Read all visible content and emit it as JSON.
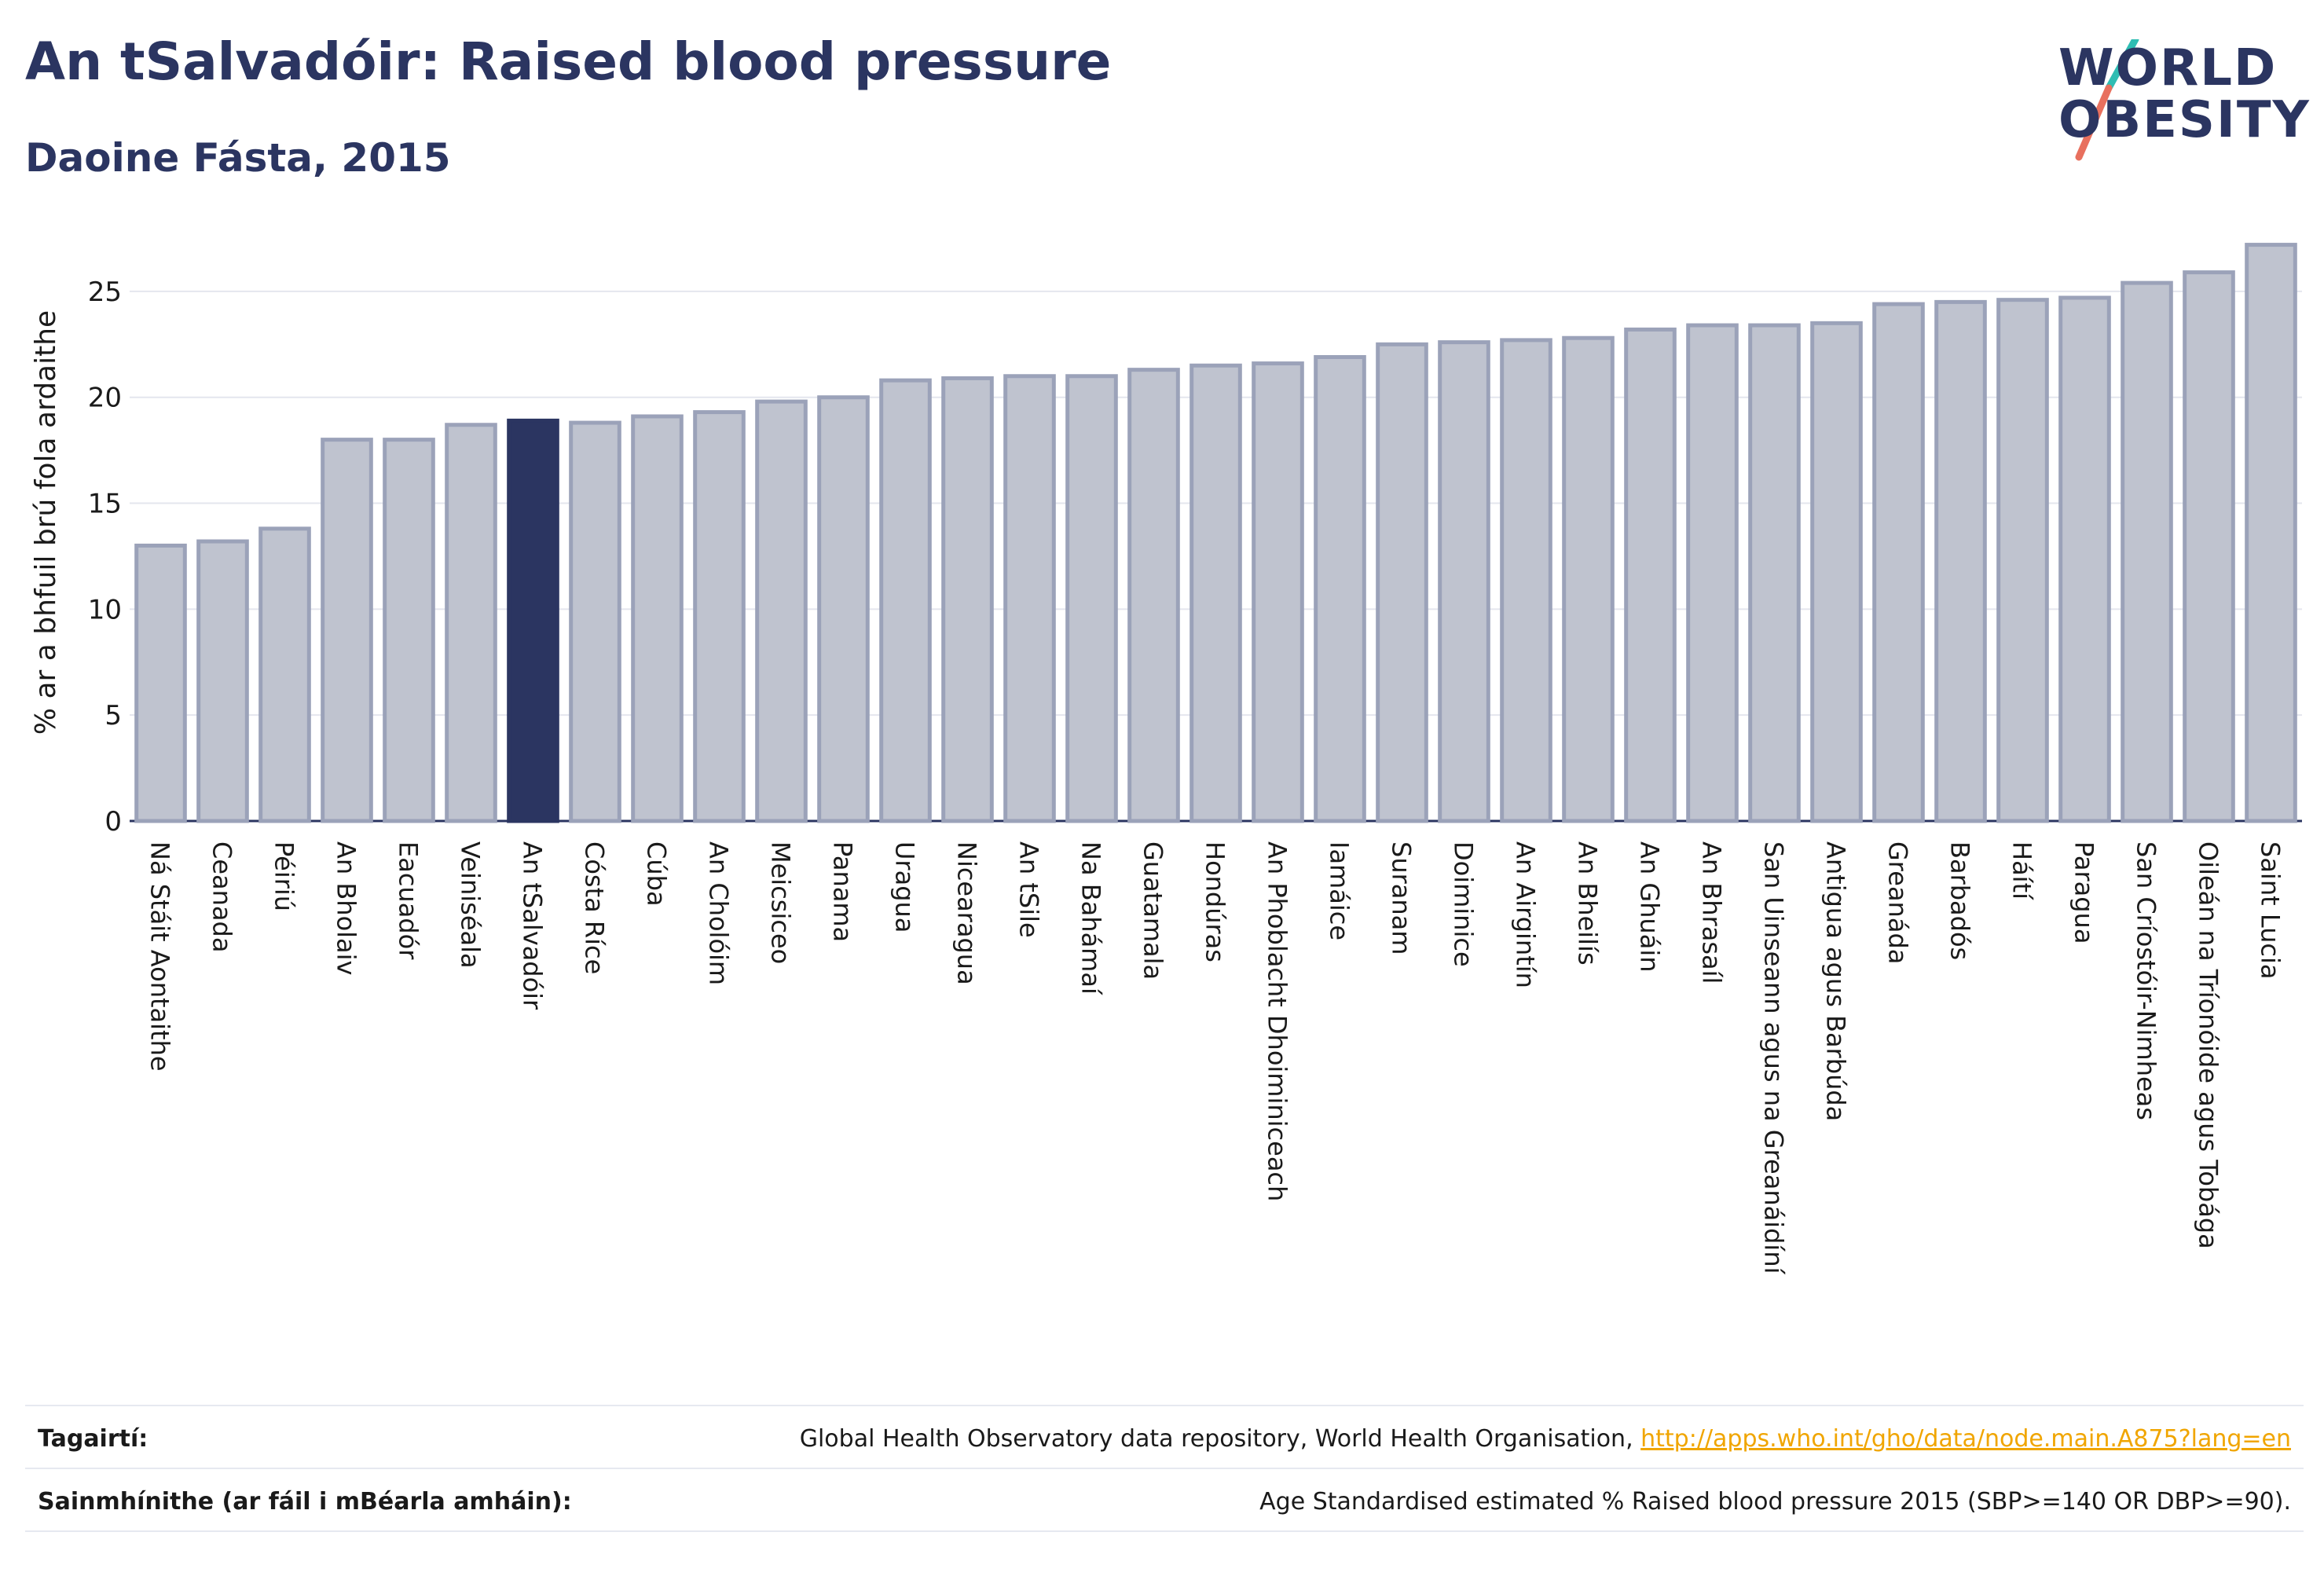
{
  "header": {
    "title": "An tSalvadóir: Raised blood pressure",
    "subtitle": "Daoine Fásta, 2015"
  },
  "logo": {
    "line1": "WORLD",
    "line2": "OBESITY",
    "icon": "world-obesity-slash-logo"
  },
  "colors": {
    "bar": "#bfc3cf",
    "bar_border": "#9ba2b9",
    "highlight": "#2b3561",
    "accent_teal": "#2fbdb3",
    "accent_coral": "#e8705e",
    "link": "#f0a500"
  },
  "chart_data": {
    "type": "bar",
    "ylabel": "% ar a bhfuil brú fola ardaithe",
    "ylim": [
      0,
      28
    ],
    "yticks": [
      0,
      5,
      10,
      15,
      20,
      25
    ],
    "grid": true,
    "highlight_category": "An tSalvadóir",
    "categories": [
      "Ná Stáit Aontaithe",
      "Ceanada",
      "Péiriú",
      "An Bholaiv",
      "Eacuadór",
      "Veiniséala",
      "An tSalvadóir",
      "Cósta Ríce",
      "Cúba",
      "An Cholóim",
      "Meicsiceo",
      "Panama",
      "Uragua",
      "Nicearagua",
      "An tSile",
      "Na Bahámaí",
      "Guatamala",
      "Hondúras",
      "An Phoblacht Dhoiminiceach",
      "Iamáice",
      "Suranam",
      "Doiminice",
      "An Airgintín",
      "An Bheilís",
      "An Ghuáin",
      "An Bhrasaíl",
      "San Uinseann agus na Greanáidíní",
      "Antigua agus Barbúda",
      "Greanáda",
      "Barbadós",
      "Háítí",
      "Paragua",
      "San Críostóir-Nimheas",
      "Oileán na Tríonóide agus Tobága",
      "Saint Lucia"
    ],
    "values": [
      13.0,
      13.2,
      13.8,
      18.0,
      18.0,
      18.7,
      18.9,
      18.8,
      19.1,
      19.3,
      19.8,
      20.0,
      20.8,
      20.9,
      21.0,
      21.0,
      21.3,
      21.5,
      21.6,
      21.9,
      22.5,
      22.6,
      22.7,
      22.8,
      23.2,
      23.4,
      23.4,
      23.5,
      24.4,
      24.5,
      24.6,
      24.7,
      25.4,
      25.9,
      27.2
    ]
  },
  "footer": {
    "references_label": "Tagairtí:",
    "references_text": "Global Health Observatory data repository, World Health Organisation, ",
    "references_link": "http://apps.who.int/gho/data/node.main.A875?lang=en",
    "definitions_label": "Sainmhínithe (ar fáil i mBéarla amháin):",
    "definitions_text": "Age Standardised estimated % Raised blood pressure 2015 (SBP>=140 OR DBP>=90)."
  }
}
